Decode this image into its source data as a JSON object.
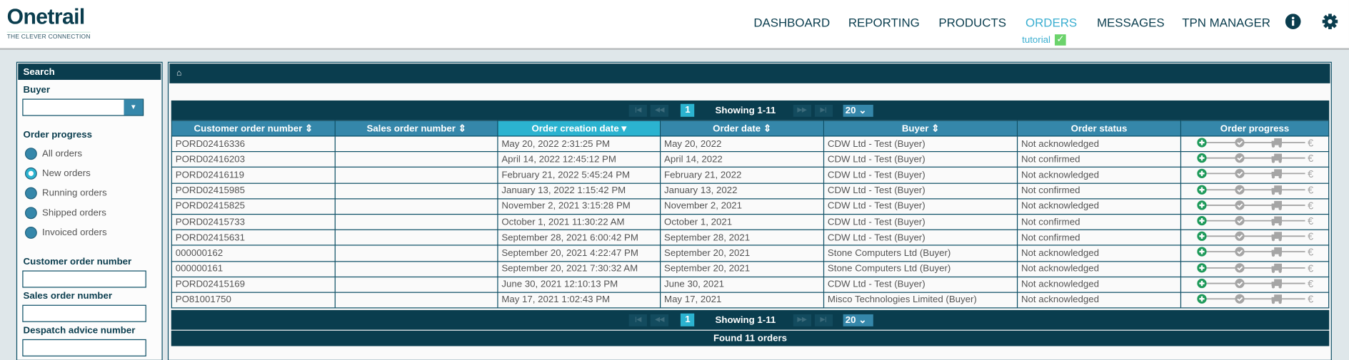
{
  "header": {
    "logo_title": "Onetrail",
    "logo_tagline": "THE CLEVER CONNECTION",
    "nav": [
      {
        "label": "DASHBOARD",
        "active": false
      },
      {
        "label": "REPORTING",
        "active": false
      },
      {
        "label": "PRODUCTS",
        "active": false
      },
      {
        "label": "ORDERS",
        "active": true
      },
      {
        "label": "MESSAGES",
        "active": false
      },
      {
        "label": "TPN MANAGER",
        "active": false
      }
    ],
    "tutorial_label": "tutorial",
    "tutorial_check": "✓",
    "icons": [
      "info-icon",
      "gear-icon"
    ]
  },
  "sidebar": {
    "title": "Search",
    "buyer_label": "Buyer",
    "buyer_value": "",
    "order_progress_label": "Order progress",
    "radios": [
      {
        "label": "All orders",
        "checked": false
      },
      {
        "label": "New orders",
        "checked": true
      },
      {
        "label": "Running orders",
        "checked": false
      },
      {
        "label": "Shipped orders",
        "checked": false
      },
      {
        "label": "Invoiced orders",
        "checked": false
      }
    ],
    "fields": [
      {
        "label": "Customer order number",
        "value": ""
      },
      {
        "label": "Sales order number",
        "value": ""
      },
      {
        "label": "Despatch advice number",
        "value": ""
      }
    ]
  },
  "pager": {
    "page": "1",
    "showing": "Showing 1-11",
    "page_size": "20"
  },
  "table": {
    "columns": [
      "Customer order number ⇕",
      "Sales order number ⇕",
      "Order creation date ▾",
      "Order date ⇕",
      "Buyer ⇕",
      "Order status",
      "Order progress"
    ],
    "sorted_column": 2,
    "rows": [
      [
        "PORD02416336",
        "",
        "May 20, 2022 2:31:25 PM",
        "May 20, 2022",
        "CDW Ltd - Test (Buyer)",
        "Not acknowledged"
      ],
      [
        "PORD02416203",
        "",
        "April 14, 2022 12:45:12 PM",
        "April 14, 2022",
        "CDW Ltd - Test (Buyer)",
        "Not confirmed"
      ],
      [
        "PORD02416119",
        "",
        "February 21, 2022 5:45:24 PM",
        "February 21, 2022",
        "CDW Ltd - Test (Buyer)",
        "Not acknowledged"
      ],
      [
        "PORD02415985",
        "",
        "January 13, 2022 1:15:42 PM",
        "January 13, 2022",
        "CDW Ltd - Test (Buyer)",
        "Not confirmed"
      ],
      [
        "PORD02415825",
        "",
        "November 2, 2021 3:15:28 PM",
        "November 2, 2021",
        "CDW Ltd - Test (Buyer)",
        "Not acknowledged"
      ],
      [
        "PORD02415733",
        "",
        "October 1, 2021 11:30:22 AM",
        "October 1, 2021",
        "CDW Ltd - Test (Buyer)",
        "Not confirmed"
      ],
      [
        "PORD02415631",
        "",
        "September 28, 2021 6:00:42 PM",
        "September 28, 2021",
        "CDW Ltd - Test (Buyer)",
        "Not confirmed"
      ],
      [
        "000000162",
        "",
        "September 20, 2021 4:22:47 PM",
        "September 20, 2021",
        "Stone Computers Ltd (Buyer)",
        "Not acknowledged"
      ],
      [
        "000000161",
        "",
        "September 20, 2021 7:30:32 AM",
        "September 20, 2021",
        "Stone Computers Ltd (Buyer)",
        "Not acknowledged"
      ],
      [
        "PORD02415169",
        "",
        "June 30, 2021 12:10:13 PM",
        "June 30, 2021",
        "CDW Ltd - Test (Buyer)",
        "Not acknowledged"
      ],
      [
        "PO81001750",
        "",
        "May 17, 2021 1:02:43 PM",
        "May 17, 2021",
        "Misco Technologies Limited (Buyer)",
        "Not acknowledged"
      ]
    ],
    "progress_steps": [
      "new",
      "confirmed",
      "shipped",
      "invoiced"
    ],
    "progress_active_step": 0
  },
  "footer": {
    "found": "Found 11 orders"
  },
  "colors": {
    "dark": "#0a3d4e",
    "header_row": "#3587aa",
    "accent": "#2bb3d0",
    "progress_active": "#1e9a5a",
    "progress_inactive": "#a5a5a5"
  }
}
